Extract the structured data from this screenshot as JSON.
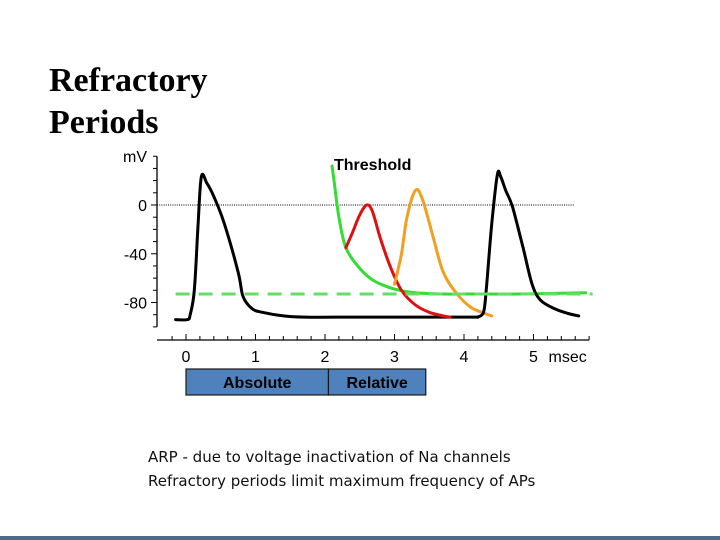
{
  "slide": {
    "title_lines": [
      "Refractory",
      "Periods"
    ],
    "caption_lines": [
      "ARP - due to voltage inactivation of Na channels",
      "Refractory periods limit maximum frequency of APs"
    ]
  },
  "chart_data": {
    "type": "line",
    "title": "",
    "ylabel": "mV",
    "xlabel": "msec",
    "ylim": [
      -100,
      40
    ],
    "xlim": [
      -0.2,
      5.8
    ],
    "yticks": [
      0,
      -40,
      -80
    ],
    "ytick_labels": [
      "0",
      "-40",
      "-80"
    ],
    "xticks": [
      0,
      1,
      2,
      3,
      4,
      5
    ],
    "xtick_labels": [
      "0",
      "1",
      "2",
      "3",
      "4",
      "5"
    ],
    "zero_reference_line": true,
    "threshold_label": "Threshold",
    "colors": {
      "action_potential": "#000000",
      "threshold": "#33dd33",
      "early_response": "#dd1111",
      "late_response": "#f0a020",
      "resting_potential": "#66dd66",
      "period_bar": "#4f81bd"
    },
    "series": [
      {
        "color_key": "action_potential",
        "x": [
          -0.15,
          0.02,
          0.06,
          0.12,
          0.17,
          0.22,
          0.3,
          0.4,
          0.55,
          0.75,
          0.82,
          0.95,
          1.1,
          1.4,
          1.7,
          2.5,
          3.5,
          4.2
        ],
        "y": [
          -94,
          -94,
          -90,
          -70,
          -20,
          23,
          18,
          7,
          -15,
          -55,
          -75,
          -85,
          -88,
          -91,
          -92,
          -92,
          -92,
          -92
        ]
      },
      {
        "color_key": "threshold",
        "x": [
          2.1,
          2.13,
          2.2,
          2.3,
          2.5,
          2.7,
          3.0,
          3.3,
          3.7,
          4.2,
          4.8,
          5.75
        ],
        "y": [
          32,
          20,
          -10,
          -35,
          -52,
          -62,
          -69,
          -72,
          -73,
          -73,
          -73,
          -72
        ]
      },
      {
        "color_key": "early_response",
        "x": [
          2.3,
          2.4,
          2.5,
          2.6,
          2.68,
          2.8,
          2.95,
          3.1,
          3.3,
          3.5,
          3.7,
          3.8
        ],
        "y": [
          -35,
          -22,
          -8,
          0,
          -5,
          -28,
          -52,
          -70,
          -82,
          -88,
          -91,
          -92
        ]
      },
      {
        "color_key": "late_response",
        "x": [
          3.0,
          3.1,
          3.18,
          3.3,
          3.4,
          3.55,
          3.7,
          3.9,
          4.1,
          4.3,
          4.4
        ],
        "y": [
          -65,
          -40,
          -10,
          12,
          5,
          -25,
          -55,
          -73,
          -84,
          -89,
          -91
        ]
      },
      {
        "color_key": "action_potential",
        "x": [
          4.2,
          4.28,
          4.32,
          4.4,
          4.48,
          4.53,
          4.6,
          4.7,
          4.85,
          4.98,
          5.1,
          5.3,
          5.5,
          5.65
        ],
        "y": [
          -92,
          -88,
          -70,
          -15,
          25,
          23,
          12,
          -2,
          -35,
          -65,
          -78,
          -85,
          -89,
          -91
        ]
      },
      {
        "color_key": "resting_potential",
        "dashed": true,
        "x": [
          -0.15,
          5.85
        ],
        "y": [
          -73,
          -73
        ]
      }
    ],
    "period_bars": [
      {
        "label": "Absolute",
        "x_start": 0.0,
        "x_end": 2.05
      },
      {
        "label": "Relative",
        "x_start": 2.05,
        "x_end": 3.45
      }
    ]
  }
}
